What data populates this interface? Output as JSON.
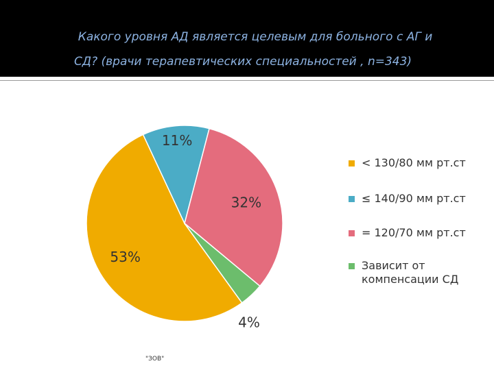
{
  "slide": {
    "title_line1": "Какого уровня АД является целевым для больного с АГ и",
    "title_line2": "СД? (врачи терапевтических специальностей , n=343)",
    "footer": "\"ЗОВ\""
  },
  "colors": {
    "header_bg": "#000000",
    "title_text": "#8db3e2"
  },
  "chart_data": {
    "type": "pie",
    "title": "",
    "slices": [
      {
        "label": "< 130/80 мм рт.ст",
        "value": 53,
        "display": "53%",
        "color": "#f0ab00"
      },
      {
        "label": "≤ 140/90 мм рт.ст",
        "value": 11,
        "display": "11%",
        "color": "#4bacc6"
      },
      {
        "label": "= 120/70 мм рт.ст",
        "value": 32,
        "display": "32%",
        "color": "#e46c7d"
      },
      {
        "label": "Зависит от\nкомпенсации СД",
        "value": 4,
        "display": "4%",
        "color": "#6cbd6c"
      }
    ],
    "legend_position": "right",
    "data_labels": true
  }
}
